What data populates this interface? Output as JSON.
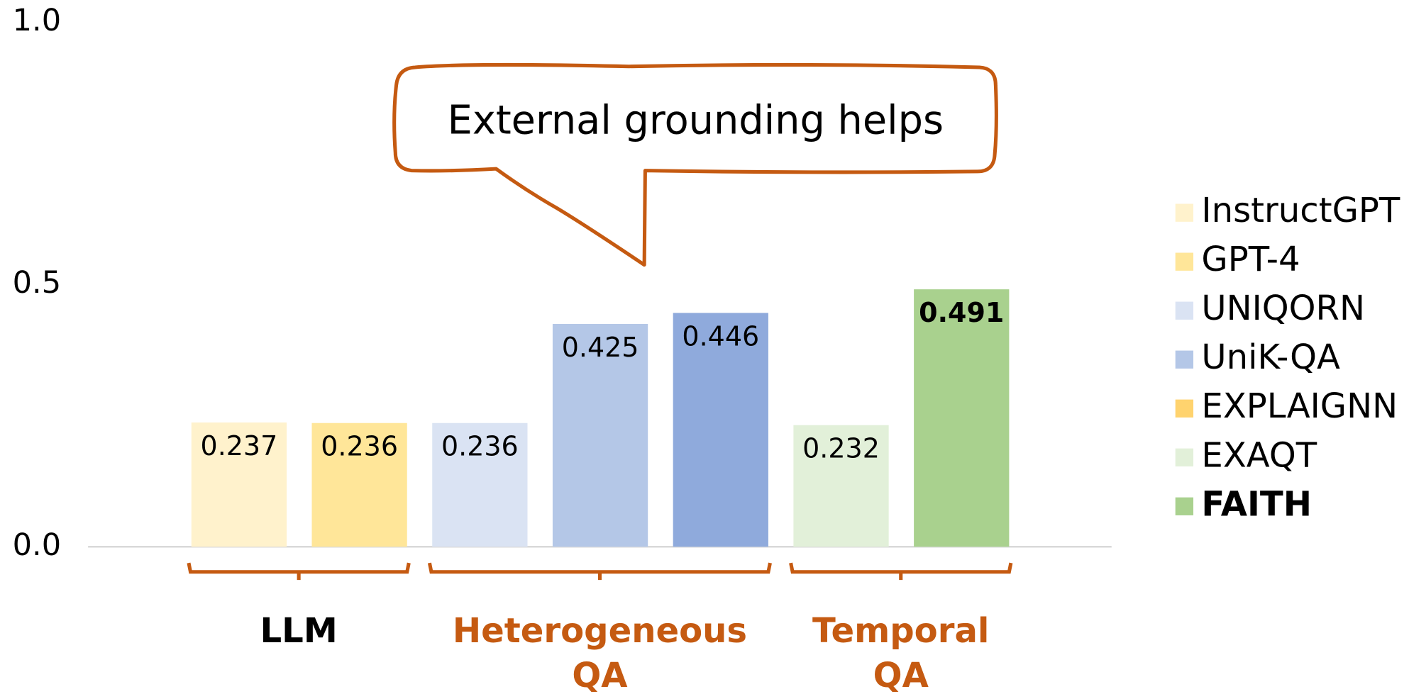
{
  "chart_data": {
    "type": "bar",
    "annotation": "External grounding helps",
    "ylim": [
      0,
      1
    ],
    "yticks": [
      {
        "value": 0,
        "label": "0.0"
      },
      0.5,
      {
        "value": 1,
        "label": "1.0"
      }
    ],
    "series": [
      {
        "name": "InstructGPT",
        "color": "#fff2cc",
        "values": [
          0.237
        ]
      },
      {
        "name": "GPT-4",
        "color": "#ffe699",
        "values": [
          0.236
        ]
      },
      {
        "name": "UNIQORN",
        "color": "#dae3f3",
        "values": [
          0.236
        ]
      },
      {
        "name": "UniK-QA",
        "color": "#b4c7e7",
        "values": [
          0.425
        ]
      },
      {
        "name": "EXPLAIGNN",
        "color": "#8faadc",
        "legend_color": "#ffd36e",
        "values": [
          0.446
        ]
      },
      {
        "name": "EXAQT",
        "color": "#e2f0d9",
        "values": [
          0.232
        ]
      },
      {
        "name": "FAITH",
        "color": "#a9d18e",
        "values": [
          0.491
        ],
        "bold": true
      }
    ],
    "groups": [
      {
        "name": "LLM",
        "members": [
          "InstructGPT",
          "GPT-4"
        ]
      },
      {
        "name": "Heterogeneous QA",
        "members": [
          "UNIQORN",
          "UniK-QA",
          "EXPLAIGNN"
        ]
      },
      {
        "name": "Temporal QA",
        "members": [
          "EXAQT",
          "FAITH"
        ]
      }
    ],
    "group_color": "#c55a11"
  }
}
